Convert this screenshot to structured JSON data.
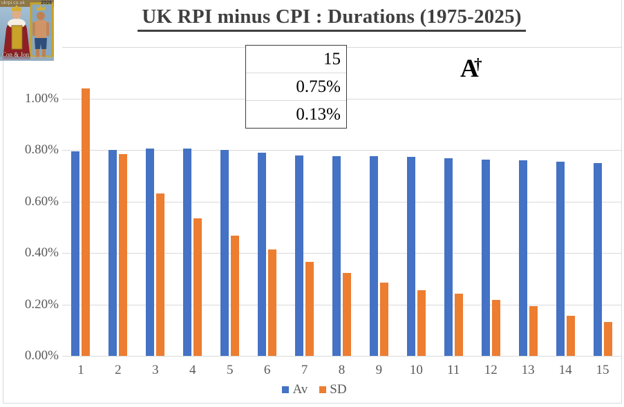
{
  "logo": {
    "site": "ukrpi.co.uk",
    "year": "2026",
    "caption": "Con & Jon"
  },
  "title": {
    "text": "UK RPI minus CPI : Durations (1975-2025)"
  },
  "callout": {
    "rows": [
      "15",
      "0.75%",
      "0.13%"
    ]
  },
  "monogram": {
    "letter": "A",
    "cross": "†"
  },
  "colors": {
    "bar_blue": "#4472C4",
    "bar_orange": "#ED7D31",
    "gridline": "#D9D9D9",
    "axis_text": "#595959",
    "title_text": "#3F3F3F"
  },
  "chart_data": {
    "type": "bar",
    "title": "UK RPI minus CPI : Durations (1975-2025)",
    "categories": [
      "1",
      "2",
      "3",
      "4",
      "5",
      "6",
      "7",
      "8",
      "9",
      "10",
      "11",
      "12",
      "13",
      "14",
      "15"
    ],
    "series": [
      {
        "name": "Av",
        "color": "#4472C4",
        "values": [
          0.795,
          0.8,
          0.805,
          0.805,
          0.8,
          0.79,
          0.778,
          0.775,
          0.776,
          0.773,
          0.768,
          0.763,
          0.76,
          0.755,
          0.748
        ]
      },
      {
        "name": "SD",
        "color": "#ED7D31",
        "values": [
          1.039,
          0.783,
          0.63,
          0.533,
          0.466,
          0.414,
          0.366,
          0.321,
          0.284,
          0.256,
          0.241,
          0.217,
          0.192,
          0.157,
          0.131
        ]
      }
    ],
    "y_ticks": [
      {
        "label": "0.00%",
        "value": 0.0
      },
      {
        "label": "0.20%",
        "value": 0.2
      },
      {
        "label": "0.40%",
        "value": 0.4
      },
      {
        "label": "0.60%",
        "value": 0.6
      },
      {
        "label": "0.80%",
        "value": 0.8
      },
      {
        "label": "1.00%",
        "value": 1.0
      }
    ],
    "gridline_values": [
      0.0,
      0.2,
      0.4,
      0.6,
      0.8,
      1.0,
      1.2
    ],
    "ylim": [
      0,
      1.2
    ],
    "xlabel": "",
    "ylabel": "",
    "grid": true,
    "legend_position": "bottom",
    "callout_values": {
      "duration": "15",
      "Av": "0.75%",
      "SD": "0.13%"
    }
  }
}
